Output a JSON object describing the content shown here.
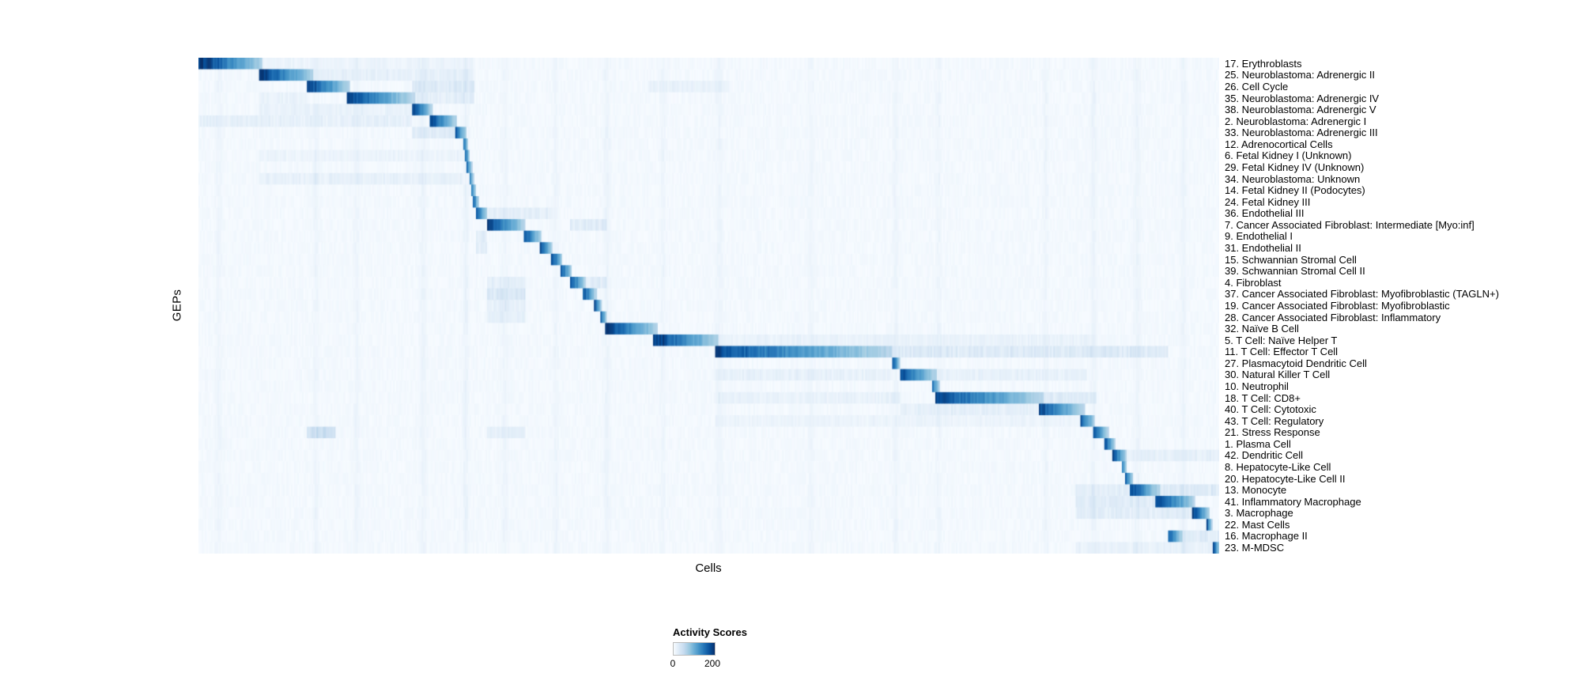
{
  "chart_data": {
    "type": "heatmap",
    "title": "",
    "xlabel": "Cells",
    "ylabel": "GEPs",
    "value_range": [
      0,
      200
    ],
    "colorbar": {
      "title": "Activity Scores",
      "min": 0,
      "max": 200,
      "min_label": "0",
      "max_label": "200",
      "colormap": "Blues",
      "colormap_stops": [
        "#f7fbff",
        "#deebf7",
        "#c6dbef",
        "#9ecae1",
        "#6baed6",
        "#4292c6",
        "#2171b5",
        "#08519c",
        "#08306b"
      ]
    },
    "background_level": 7,
    "streaks": [
      {
        "x": 0.02,
        "w": 0.005,
        "v": 10
      },
      {
        "x": 0.115,
        "w": 0.004,
        "v": 12
      },
      {
        "x": 0.155,
        "w": 0.004,
        "v": 10
      },
      {
        "x": 0.22,
        "w": 0.005,
        "v": 12
      },
      {
        "x": 0.262,
        "w": 0.004,
        "v": 16
      },
      {
        "x": 0.3,
        "w": 0.005,
        "v": 10
      },
      {
        "x": 0.35,
        "w": 0.004,
        "v": 10
      },
      {
        "x": 0.4,
        "w": 0.005,
        "v": 12
      },
      {
        "x": 0.455,
        "w": 0.004,
        "v": 10
      },
      {
        "x": 0.51,
        "w": 0.005,
        "v": 10
      },
      {
        "x": 0.6,
        "w": 0.004,
        "v": 8
      },
      {
        "x": 0.683,
        "w": 0.004,
        "v": 12
      },
      {
        "x": 0.725,
        "w": 0.004,
        "v": 10
      },
      {
        "x": 0.83,
        "w": 0.004,
        "v": 10
      },
      {
        "x": 0.877,
        "w": 0.004,
        "v": 14
      },
      {
        "x": 0.92,
        "w": 0.005,
        "v": 12
      },
      {
        "x": 0.965,
        "w": 0.004,
        "v": 12
      }
    ],
    "rows": [
      {
        "label": "17. Erythroblasts",
        "block": [
          0.0,
          0.062
        ],
        "peak": 215,
        "extra": [
          [
            0.062,
            0.27,
            10
          ]
        ]
      },
      {
        "label": "25. Neuroblastoma: Adrenergic II",
        "block": [
          0.06,
          0.113
        ],
        "peak": 205,
        "extra": [
          [
            0.113,
            0.27,
            18
          ]
        ]
      },
      {
        "label": "26. Cell Cycle",
        "block": [
          0.106,
          0.148
        ],
        "peak": 205,
        "extra": [
          [
            0.21,
            0.27,
            30
          ],
          [
            0.44,
            0.52,
            15
          ]
        ]
      },
      {
        "label": "35. Neuroblastoma: Adrenergic IV",
        "block": [
          0.146,
          0.212
        ],
        "peak": 195,
        "extra": [
          [
            0.06,
            0.106,
            15
          ],
          [
            0.212,
            0.27,
            22
          ]
        ]
      },
      {
        "label": "38. Neuroblastoma: Adrenergic V",
        "block": [
          0.21,
          0.229
        ],
        "peak": 195,
        "extra": [
          [
            0.06,
            0.21,
            14
          ]
        ]
      },
      {
        "label": "2. Neuroblastoma: Adrenergic I",
        "block": [
          0.227,
          0.253
        ],
        "peak": 200,
        "extra": [
          [
            0.0,
            0.21,
            18
          ]
        ]
      },
      {
        "label": "33. Neuroblastoma: Adrenergic III",
        "block": [
          0.251,
          0.262
        ],
        "peak": 195,
        "extra": [
          [
            0.21,
            0.251,
            25
          ]
        ]
      },
      {
        "label": "12. Adrenocortical Cells",
        "block": [
          0.259,
          0.264
        ],
        "peak": 175
      },
      {
        "label": "6. Fetal Kidney I (Unknown)",
        "block": [
          0.261,
          0.266
        ],
        "peak": 170,
        "extra": [
          [
            0.06,
            0.26,
            10
          ]
        ]
      },
      {
        "label": "29. Fetal Kidney IV (Unknown)",
        "block": [
          0.263,
          0.268
        ],
        "peak": 165
      },
      {
        "label": "34. Neuroblastoma: Unknown",
        "block": [
          0.265,
          0.27
        ],
        "peak": 165,
        "extra": [
          [
            0.06,
            0.26,
            16
          ]
        ]
      },
      {
        "label": "14. Fetal Kidney II (Podocytes)",
        "block": [
          0.267,
          0.272
        ],
        "peak": 170
      },
      {
        "label": "24. Fetal Kidney III",
        "block": [
          0.269,
          0.275
        ],
        "peak": 175
      },
      {
        "label": "36. Endothelial III",
        "block": [
          0.272,
          0.283
        ],
        "peak": 190,
        "extra": [
          [
            0.283,
            0.347,
            20
          ]
        ]
      },
      {
        "label": "7. Cancer Associated Fibroblast: Intermediate [Myo:inf]",
        "block": [
          0.283,
          0.32
        ],
        "peak": 200,
        "extra": [
          [
            0.364,
            0.4,
            25
          ]
        ]
      },
      {
        "label": "9. Endothelial I",
        "block": [
          0.318,
          0.336
        ],
        "peak": 195,
        "extra": [
          [
            0.272,
            0.283,
            30
          ]
        ]
      },
      {
        "label": "31. Endothelial II",
        "block": [
          0.334,
          0.347
        ],
        "peak": 190,
        "extra": [
          [
            0.272,
            0.283,
            25
          ]
        ]
      },
      {
        "label": "15. Schwannian Stromal Cell",
        "block": [
          0.345,
          0.357
        ],
        "peak": 195
      },
      {
        "label": "39. Schwannian Stromal Cell II",
        "block": [
          0.355,
          0.366
        ],
        "peak": 190
      },
      {
        "label": "4. Fibroblast",
        "block": [
          0.364,
          0.379
        ],
        "peak": 195,
        "extra": [
          [
            0.283,
            0.32,
            22
          ],
          [
            0.379,
            0.4,
            25
          ]
        ]
      },
      {
        "label": "37. Cancer Associated Fibroblast: Myofibroblastic (TAGLN+)",
        "block": [
          0.377,
          0.39
        ],
        "peak": 190,
        "extra": [
          [
            0.283,
            0.32,
            35
          ]
        ]
      },
      {
        "label": "19. Cancer Associated Fibroblast: Myofibroblastic",
        "block": [
          0.388,
          0.395
        ],
        "peak": 185,
        "extra": [
          [
            0.283,
            0.32,
            20
          ]
        ]
      },
      {
        "label": "28. Cancer Associated Fibroblast: Inflammatory",
        "block": [
          0.393,
          0.4
        ],
        "peak": 185,
        "extra": [
          [
            0.283,
            0.32,
            20
          ]
        ]
      },
      {
        "label": "32. Naïve B Cell",
        "block": [
          0.398,
          0.45
        ],
        "peak": 205
      },
      {
        "label": "5. T Cell: Naïve Helper T",
        "block": [
          0.446,
          0.51
        ],
        "peak": 205,
        "extra": [
          [
            0.51,
            0.88,
            14
          ]
        ]
      },
      {
        "label": "11. T Cell: Effector T Cell",
        "block": [
          0.506,
          0.68
        ],
        "peak": 190,
        "extra": [
          [
            0.68,
            0.95,
            30
          ]
        ]
      },
      {
        "label": "27. Plasmacytoid Dendritic Cell",
        "block": [
          0.679,
          0.688
        ],
        "peak": 185
      },
      {
        "label": "30. Natural Killer T Cell",
        "block": [
          0.688,
          0.724
        ],
        "peak": 190,
        "extra": [
          [
            0.506,
            0.68,
            16
          ],
          [
            0.724,
            0.87,
            16
          ]
        ]
      },
      {
        "label": "10. Neutrophil",
        "block": [
          0.718,
          0.726
        ],
        "peak": 175
      },
      {
        "label": "18. T Cell: CD8+",
        "block": [
          0.722,
          0.828
        ],
        "peak": 195,
        "extra": [
          [
            0.506,
            0.688,
            14
          ],
          [
            0.828,
            0.88,
            28
          ]
        ]
      },
      {
        "label": "40. T Cell: Cytotoxic",
        "block": [
          0.824,
          0.868
        ],
        "peak": 190,
        "extra": [
          [
            0.688,
            0.824,
            20
          ]
        ]
      },
      {
        "label": "43. T Cell: Regulatory",
        "block": [
          0.864,
          0.878
        ],
        "peak": 185,
        "extra": [
          [
            0.506,
            0.864,
            10
          ]
        ]
      },
      {
        "label": "21. Stress Response",
        "block": [
          0.876,
          0.892
        ],
        "peak": 185,
        "extra": [
          [
            0.106,
            0.135,
            55
          ],
          [
            0.283,
            0.32,
            20
          ]
        ]
      },
      {
        "label": "1. Plasma Cell",
        "block": [
          0.888,
          0.898
        ],
        "peak": 190
      },
      {
        "label": "42. Dendritic Cell",
        "block": [
          0.896,
          0.91
        ],
        "peak": 185,
        "extra": [
          [
            0.91,
            1.0,
            18
          ]
        ]
      },
      {
        "label": "8. Hepatocyte-Like Cell",
        "block": [
          0.904,
          0.91
        ],
        "peak": 175
      },
      {
        "label": "20. Hepatocyte-Like Cell II",
        "block": [
          0.908,
          0.916
        ],
        "peak": 175
      },
      {
        "label": "13. Monocyte",
        "block": [
          0.912,
          0.942
        ],
        "peak": 200,
        "extra": [
          [
            0.86,
            0.912,
            20
          ],
          [
            0.942,
            1.0,
            30
          ]
        ]
      },
      {
        "label": "41. Inflammatory Macrophage",
        "block": [
          0.938,
          0.976
        ],
        "peak": 200,
        "extra": [
          [
            0.86,
            0.938,
            25
          ]
        ]
      },
      {
        "label": "3. Macrophage",
        "block": [
          0.974,
          0.991
        ],
        "peak": 200,
        "extra": [
          [
            0.86,
            0.974,
            22
          ]
        ]
      },
      {
        "label": "22. Mast Cells",
        "block": [
          0.988,
          0.993
        ],
        "peak": 190
      },
      {
        "label": "16. Macrophage II",
        "block": [
          0.95,
          0.964
        ],
        "peak": 180,
        "extra": [
          [
            0.964,
            1.0,
            25
          ]
        ]
      },
      {
        "label": "23. M-MDSC",
        "block": [
          0.993,
          1.0
        ],
        "peak": 210,
        "extra": [
          [
            0.86,
            0.993,
            14
          ]
        ]
      }
    ]
  }
}
